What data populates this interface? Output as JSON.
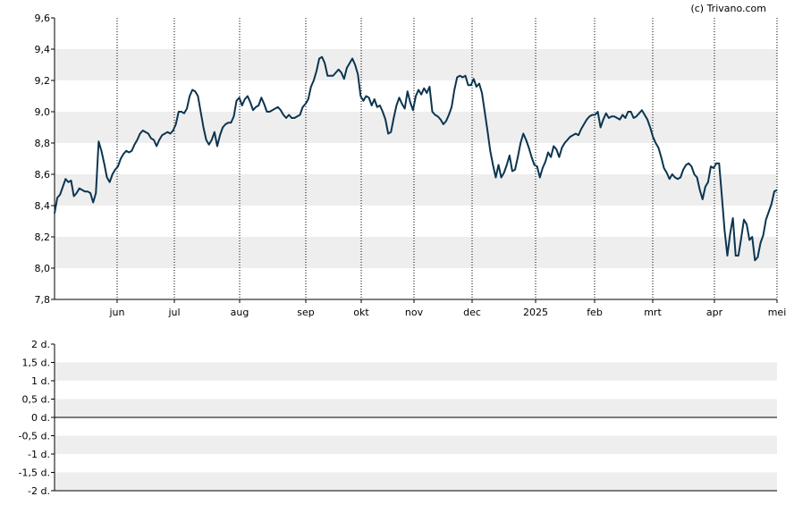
{
  "credit": "(c) Trivano.com",
  "colors": {
    "line": "#0b3550",
    "band": "#eeeeee",
    "axis": "#000000",
    "grid": "#000000",
    "background": "#ffffff"
  },
  "chart_data": [
    {
      "type": "line",
      "title": "",
      "xlabel": "",
      "ylabel": "",
      "ylim": [
        7.8,
        9.6
      ],
      "y_ticks": [
        "7,8",
        "8,0",
        "8,2",
        "8,4",
        "8,6",
        "8,8",
        "9,0",
        "9,2",
        "9,4",
        "9,6"
      ],
      "x_ticks": [
        "jun",
        "jul",
        "aug",
        "sep",
        "okt",
        "nov",
        "dec",
        "2025",
        "feb",
        "mrt",
        "apr",
        "mei"
      ],
      "grid": "vertical dotted lines at month ticks, alternating horizontal bands",
      "series": [
        {
          "values": [
            8.35,
            8.45,
            8.47,
            8.52,
            8.57,
            8.55,
            8.56,
            8.46,
            8.48,
            8.51,
            8.5,
            8.49,
            8.49,
            8.48,
            8.42,
            8.48,
            8.81,
            8.75,
            8.67,
            8.58,
            8.55,
            8.6,
            8.63,
            8.65,
            8.7,
            8.73,
            8.75,
            8.74,
            8.75,
            8.79,
            8.82,
            8.86,
            8.88,
            8.87,
            8.86,
            8.83,
            8.82,
            8.78,
            8.82,
            8.85,
            8.86,
            8.87,
            8.86,
            8.88,
            8.92,
            9.0,
            9.0,
            8.99,
            9.02,
            9.1,
            9.14,
            9.13,
            9.1,
            9.0,
            8.9,
            8.82,
            8.79,
            8.82,
            8.87,
            8.78,
            8.85,
            8.9,
            8.92,
            8.93,
            8.93,
            8.97,
            9.07,
            9.09,
            9.04,
            9.08,
            9.1,
            9.06,
            9.01,
            9.03,
            9.04,
            9.09,
            9.05,
            9.0,
            9.0,
            9.01,
            9.02,
            9.03,
            9.01,
            8.98,
            8.96,
            8.98,
            8.96,
            8.96,
            8.97,
            8.98,
            9.03,
            9.05,
            9.08,
            9.16,
            9.2,
            9.26,
            9.34,
            9.35,
            9.31,
            9.23,
            9.23,
            9.23,
            9.25,
            9.27,
            9.25,
            9.21,
            9.28,
            9.31,
            9.34,
            9.3,
            9.24,
            9.1,
            9.07,
            9.1,
            9.09,
            9.04,
            9.08,
            9.03,
            9.04,
            9.0,
            8.95,
            8.86,
            8.87,
            8.96,
            9.04,
            9.09,
            9.05,
            9.02,
            9.13,
            9.06,
            9.01,
            9.1,
            9.14,
            9.11,
            9.15,
            9.12,
            9.16,
            9.0,
            8.98,
            8.97,
            8.95,
            8.92,
            8.94,
            8.98,
            9.03,
            9.14,
            9.22,
            9.23,
            9.22,
            9.23,
            9.17,
            9.17,
            9.21,
            9.16,
            9.18,
            9.12,
            9.0,
            8.88,
            8.75,
            8.66,
            8.58,
            8.66,
            8.58,
            8.61,
            8.66,
            8.72,
            8.62,
            8.63,
            8.71,
            8.8,
            8.86,
            8.82,
            8.77,
            8.71,
            8.66,
            8.65,
            8.58,
            8.64,
            8.68,
            8.74,
            8.71,
            8.78,
            8.76,
            8.71,
            8.77,
            8.8,
            8.82,
            8.84,
            8.85,
            8.86,
            8.85,
            8.89,
            8.92,
            8.95,
            8.97,
            8.98,
            8.98,
            9.0,
            8.9,
            8.95,
            8.99,
            8.96,
            8.97,
            8.97,
            8.96,
            8.95,
            8.98,
            8.96,
            9.0,
            9.0,
            8.96,
            8.97,
            8.99,
            9.01,
            8.98,
            8.95,
            8.9,
            8.84,
            8.8,
            8.77,
            8.71,
            8.64,
            8.61,
            8.57,
            8.6,
            8.58,
            8.57,
            8.58,
            8.63,
            8.66,
            8.67,
            8.65,
            8.6,
            8.58,
            8.5,
            8.44,
            8.52,
            8.55,
            8.65,
            8.64,
            8.67,
            8.67,
            8.46,
            8.24,
            8.08,
            8.22,
            8.32,
            8.08,
            8.08,
            8.19,
            8.31,
            8.28,
            8.18,
            8.2,
            8.05,
            8.07,
            8.16,
            8.21,
            8.31,
            8.36,
            8.41,
            8.49,
            8.5
          ]
        }
      ]
    },
    {
      "type": "line",
      "title": "",
      "xlabel": "",
      "ylabel": "",
      "ylim": [
        -2,
        2
      ],
      "y_ticks": [
        "2 d.",
        "1,5 d.",
        "1 d.",
        "0,5 d.",
        "0 d.",
        "-0,5 d.",
        "-1 d.",
        "-1,5 d.",
        "-2 d."
      ],
      "grid": "alternating horizontal bands, zero line",
      "series": []
    }
  ]
}
